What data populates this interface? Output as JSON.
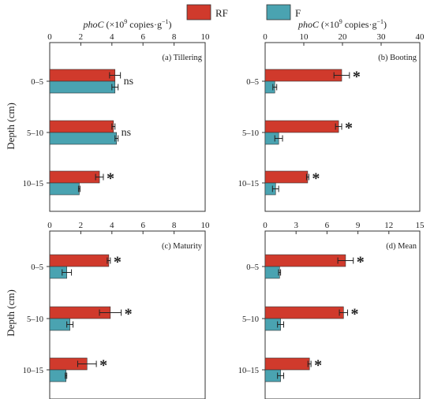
{
  "legend": [
    {
      "label": "RF",
      "color": "#d03a2c"
    },
    {
      "label": "F",
      "color": "#4aa3b1"
    }
  ],
  "y_axis_label": "Depth (cm)",
  "x_axis_label": {
    "italic": "phoC",
    "rest": " (×10",
    "sup": "9",
    "tail": " copies·g",
    "sup2": "−1",
    "end": ")"
  },
  "chart_data": [
    {
      "type": "bar",
      "panel_label": "(a) Tillering",
      "categories": [
        "0–5",
        "5–10",
        "10–15"
      ],
      "xlim": [
        0,
        10
      ],
      "xticks": [
        0,
        2,
        4,
        6,
        8,
        10
      ],
      "show_xlabel": true,
      "series": [
        {
          "name": "RF",
          "values": [
            4.2,
            4.1,
            3.2
          ],
          "errors": [
            0.35,
            0.1,
            0.25
          ]
        },
        {
          "name": "F",
          "values": [
            4.2,
            4.3,
            1.9
          ],
          "errors": [
            0.2,
            0.1,
            0.05
          ]
        }
      ],
      "significance": [
        "ns",
        "ns",
        "*"
      ]
    },
    {
      "type": "bar",
      "panel_label": "(b) Booting",
      "categories": [
        "0–5",
        "5–10",
        "10–15"
      ],
      "xlim": [
        0,
        40
      ],
      "xticks": [
        0,
        10,
        20,
        30,
        40
      ],
      "show_xlabel": true,
      "series": [
        {
          "name": "RF",
          "values": [
            19.8,
            19.0,
            11.0
          ],
          "errors": [
            2.0,
            0.8,
            0.3
          ]
        },
        {
          "name": "F",
          "values": [
            2.5,
            3.5,
            2.7
          ],
          "errors": [
            0.5,
            1.0,
            0.8
          ]
        }
      ],
      "significance": [
        "*",
        "*",
        "*"
      ]
    },
    {
      "type": "bar",
      "panel_label": "(c) Maturity",
      "categories": [
        "0–5",
        "5–10",
        "10–15"
      ],
      "xlim": [
        0,
        10
      ],
      "xticks": [
        0,
        2,
        4,
        6,
        8,
        10
      ],
      "show_xlabel": false,
      "series": [
        {
          "name": "RF",
          "values": [
            3.8,
            3.9,
            2.4
          ],
          "errors": [
            0.1,
            0.7,
            0.6
          ]
        },
        {
          "name": "F",
          "values": [
            1.1,
            1.3,
            1.05
          ],
          "errors": [
            0.3,
            0.2,
            0.05
          ]
        }
      ],
      "significance": [
        "*",
        "*",
        "*"
      ]
    },
    {
      "type": "bar",
      "panel_label": "(d) Mean",
      "categories": [
        "0–5",
        "5–10",
        "10–15"
      ],
      "xlim": [
        0,
        15
      ],
      "xticks": [
        0,
        3,
        6,
        9,
        12,
        15
      ],
      "show_xlabel": false,
      "series": [
        {
          "name": "RF",
          "values": [
            7.8,
            7.6,
            4.3
          ],
          "errors": [
            0.75,
            0.4,
            0.15
          ]
        },
        {
          "name": "F",
          "values": [
            1.4,
            1.5,
            1.5
          ],
          "errors": [
            0.1,
            0.3,
            0.3
          ]
        }
      ],
      "significance": [
        "*",
        "*",
        "*"
      ]
    }
  ]
}
